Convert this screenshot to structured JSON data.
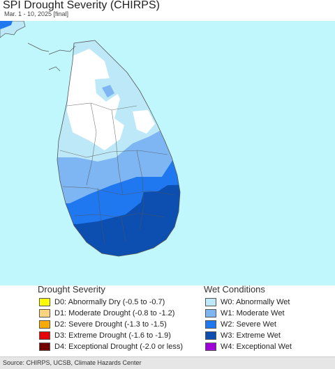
{
  "header": {
    "title": "SPI Drought Severity (CHIRPS)",
    "subtitle": "Mar. 1 - 10, 2025 [final]"
  },
  "map": {
    "ocean_color": "#bff7fd",
    "land_outline_color": "#555555",
    "regions": [
      {
        "name": "normal",
        "color": "#ffffff"
      },
      {
        "name": "abnormally-wet",
        "color": "#bde8f7"
      },
      {
        "name": "moderate-wet",
        "color": "#7db6f2"
      },
      {
        "name": "severe-wet",
        "color": "#1f78f0"
      },
      {
        "name": "extreme-wet",
        "color": "#0d4fb0"
      }
    ]
  },
  "legend": {
    "drought": {
      "title": "Drought Severity",
      "items": [
        {
          "label": "D0: Abnormally Dry (-0.5 to -0.7)",
          "color": "#ffff00"
        },
        {
          "label": "D1: Moderate Drought (-0.8 to -1.2)",
          "color": "#fcd37f"
        },
        {
          "label": "D2: Severe Drought (-1.3 to -1.5)",
          "color": "#ffaa00"
        },
        {
          "label": "D3: Extreme Drought (-1.6 to -1.9)",
          "color": "#e60000"
        },
        {
          "label": "D4: Exceptional Drought (-2.0 or less)",
          "color": "#730000"
        }
      ]
    },
    "wet": {
      "title": "Wet Conditions",
      "items": [
        {
          "label": "W0: Abnormally Wet",
          "color": "#bde8f7"
        },
        {
          "label": "W1: Moderate Wet",
          "color": "#7db6f2"
        },
        {
          "label": "W2: Severe Wet",
          "color": "#1f78f0"
        },
        {
          "label": "W3: Extreme Wet",
          "color": "#0d4fb0"
        },
        {
          "label": "W4: Exceptional Wet",
          "color": "#a000d8"
        }
      ]
    }
  },
  "footer": {
    "source": "Source: CHIRPS, UCSB, Climate Hazards Center"
  }
}
